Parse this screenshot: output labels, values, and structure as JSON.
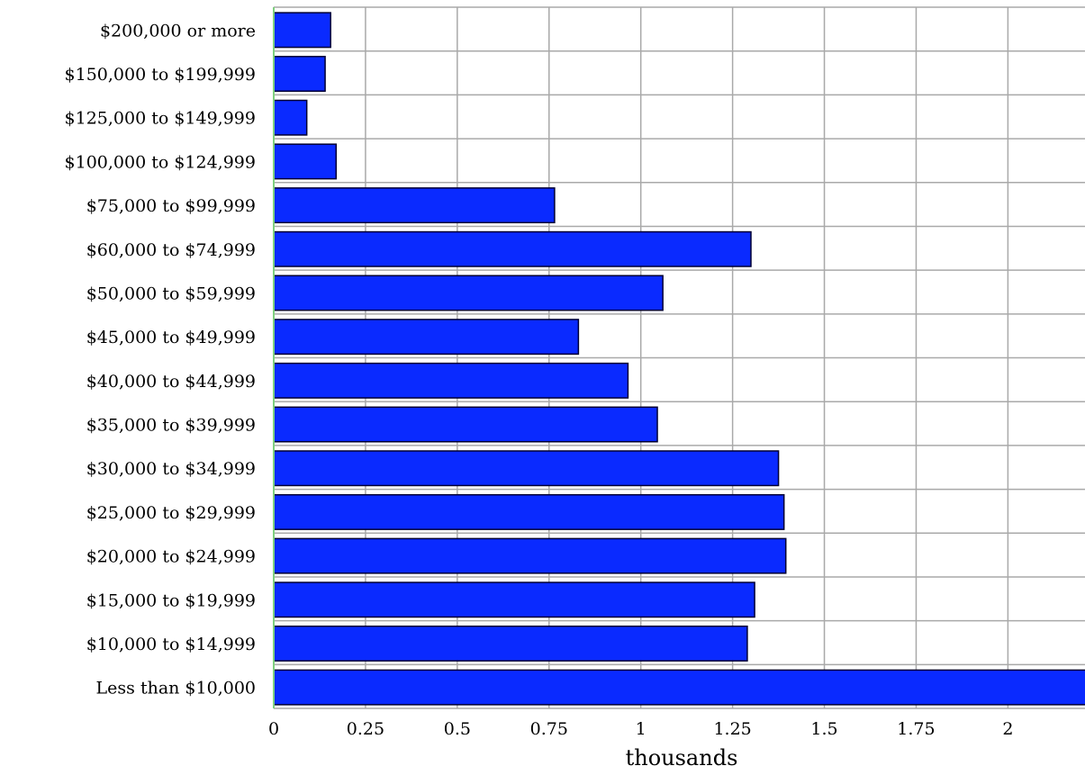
{
  "chart_data": {
    "type": "bar",
    "orientation": "horizontal",
    "categories": [
      "$200,000 or more",
      "$150,000 to $199,999",
      "$125,000 to $149,999",
      "$100,000 to $124,999",
      "$75,000 to $99,999",
      "$60,000 to $74,999",
      "$50,000 to $59,999",
      "$45,000 to $49,999",
      "$40,000 to $44,999",
      "$35,000 to $39,999",
      "$30,000 to $34,999",
      "$25,000 to $29,999",
      "$20,000 to $24,999",
      "$15,000 to $19,999",
      "$10,000 to $14,999",
      "Less than $10,000"
    ],
    "values": [
      0.155,
      0.14,
      0.09,
      0.17,
      0.765,
      1.3,
      1.06,
      0.83,
      0.965,
      1.045,
      1.375,
      1.39,
      1.395,
      1.31,
      1.29,
      2.25
    ],
    "xlabel": "thousands",
    "xlim": [
      0,
      2.21
    ],
    "xticks": [
      "0",
      "0.25",
      "0.5",
      "0.75",
      "1",
      "1.25",
      "1.5",
      "1.75",
      "2"
    ],
    "grid": true,
    "colors": {
      "bar_fill": "#0a2aff",
      "bar_stroke": "#000033",
      "grid": "#a9a9a9",
      "axis": "#7fd07f"
    }
  }
}
